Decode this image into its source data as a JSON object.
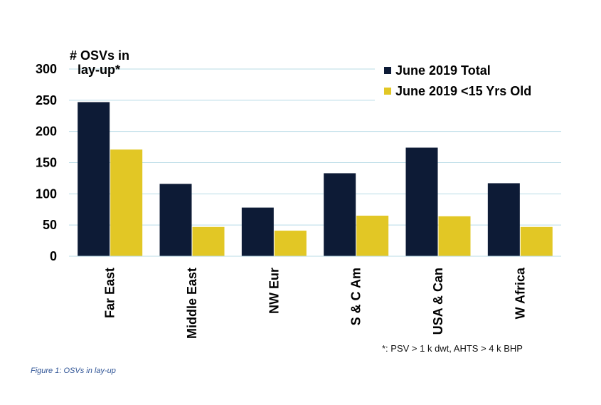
{
  "chart_data": {
    "type": "bar",
    "ylabel": "# OSVs in lay-up*",
    "ylabel_lines": [
      "# OSVs in",
      "lay-up*"
    ],
    "categories": [
      "Far East",
      "Middle East",
      "NW Eur",
      "S & C Am",
      "USA & Can",
      "W Africa"
    ],
    "series": [
      {
        "name": "June 2019 Total",
        "color": "#0d1b36",
        "values": [
          247,
          116,
          78,
          133,
          174,
          117
        ]
      },
      {
        "name": "June 2019 <15 Yrs Old",
        "color": "#e2c725",
        "values": [
          171,
          47,
          41,
          65,
          64,
          47
        ]
      }
    ],
    "ylim": [
      0,
      300
    ],
    "yticks": [
      0,
      50,
      100,
      150,
      200,
      250,
      300
    ],
    "grid": true,
    "gridline_color": "#b8dbe6",
    "legend_position": "top-right"
  },
  "footnote": "*: PSV > 1 k dwt, AHTS > 4 k BHP",
  "caption": "Figure 1: OSVs in lay-up"
}
